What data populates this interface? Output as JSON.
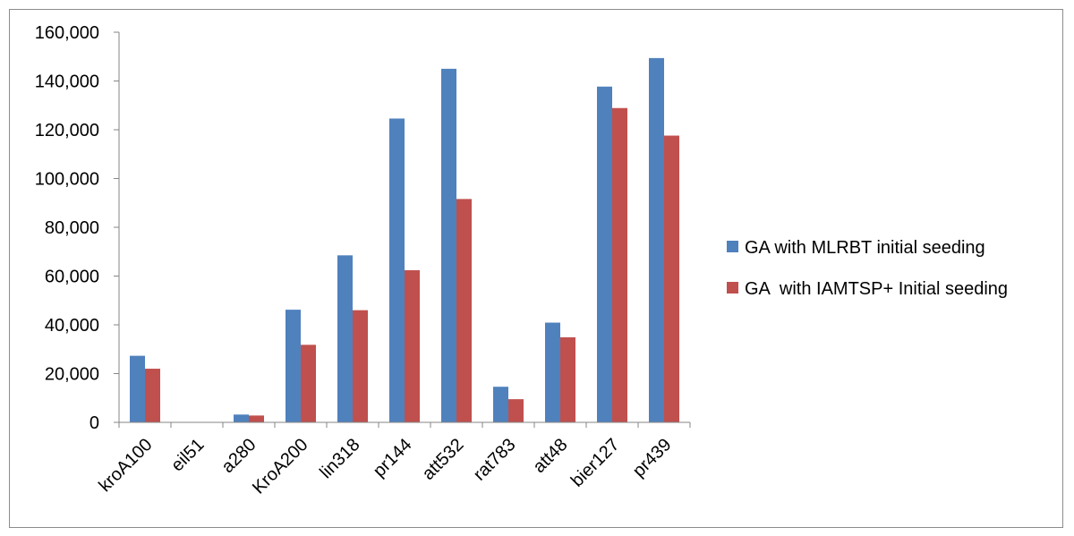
{
  "chart_data": {
    "type": "bar",
    "title": "",
    "xlabel": "",
    "ylabel": "",
    "ylim": [
      0,
      160000
    ],
    "y_ticks": [
      0,
      20000,
      40000,
      60000,
      80000,
      100000,
      120000,
      140000,
      160000
    ],
    "y_tick_labels": [
      "0",
      "20,000",
      "40,000",
      "60,000",
      "80,000",
      "100,000",
      "120,000",
      "140,000",
      "160,000"
    ],
    "grid": false,
    "legend_position": "right",
    "categories": [
      "kroA100",
      "eil51",
      "a280",
      "KroA200",
      "lin318",
      "pr144",
      "att532",
      "rat783",
      "att48",
      "bier127",
      "pr439"
    ],
    "series": [
      {
        "name": "GA with MLRBT initial seeding",
        "color": "#4F81BD",
        "values": [
          27300,
          0,
          3200,
          46200,
          68500,
          124600,
          145000,
          14600,
          40900,
          137700,
          149400
        ]
      },
      {
        "name": "GA  with IAMTSP+ Initial seeding",
        "color": "#C0504D",
        "values": [
          22000,
          0,
          2800,
          31800,
          46000,
          62400,
          91600,
          9500,
          34900,
          128900,
          117600
        ]
      }
    ]
  }
}
